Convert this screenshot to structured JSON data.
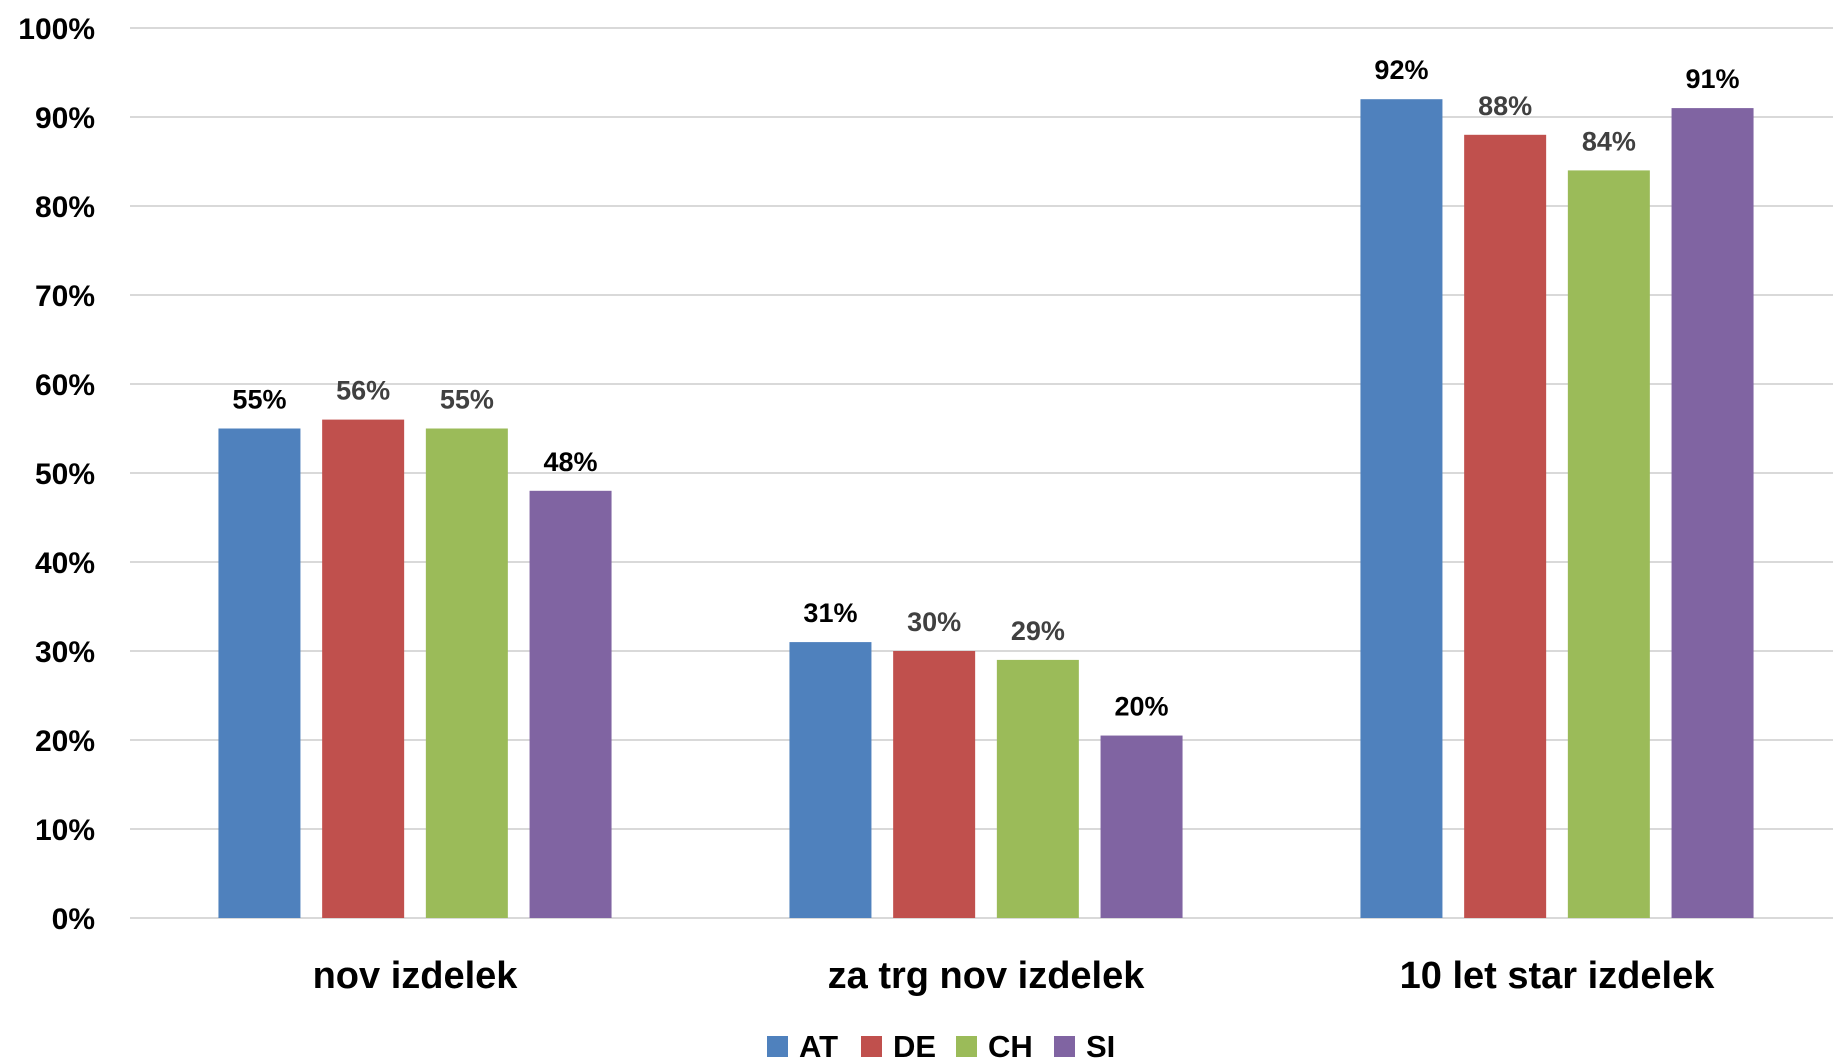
{
  "chart_data": {
    "type": "bar",
    "title": "",
    "xlabel": "",
    "ylabel": "",
    "categories": [
      "nov izdelek",
      "za trg nov izdelek",
      "10 let star izdelek"
    ],
    "series": [
      {
        "name": "AT",
        "color": "#4f81bd",
        "values": [
          55,
          31,
          92
        ],
        "labels": [
          "55%",
          "31%",
          "92%"
        ]
      },
      {
        "name": "DE",
        "color": "#c0504d",
        "values": [
          56,
          30,
          88
        ],
        "labels": [
          "56%",
          "30%",
          "88%"
        ]
      },
      {
        "name": "CH",
        "color": "#9bbb59",
        "values": [
          55,
          29,
          84
        ],
        "labels": [
          "55%",
          "29%",
          "84%"
        ]
      },
      {
        "name": "SI",
        "color": "#8064a2",
        "values": [
          48,
          20.5,
          91
        ],
        "labels": [
          "48%",
          "20%",
          "91%"
        ]
      }
    ],
    "ylim": [
      0,
      100
    ],
    "y_ticks": [
      "0%",
      "10%",
      "20%",
      "30%",
      "40%",
      "50%",
      "60%",
      "70%",
      "80%",
      "90%",
      "100%"
    ],
    "y_tick_values": [
      0,
      10,
      20,
      30,
      40,
      50,
      60,
      70,
      80,
      90,
      100
    ],
    "grid": true,
    "legend_position": "bottom"
  }
}
